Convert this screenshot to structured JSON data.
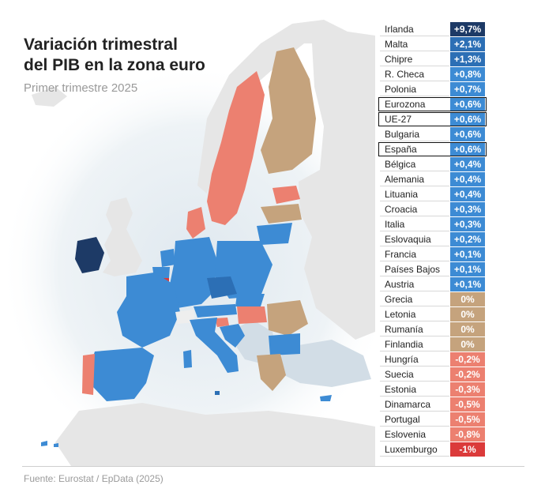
{
  "title_line1": "Variación trimestral",
  "title_line2": "del PIB en la zona euro",
  "subtitle": "Primer trimestre 2025",
  "source": "Fuente: Eurostat / EpData (2025)",
  "colors": {
    "very_high": "#1d3a66",
    "high": "#2c6fb5",
    "positive": "#3d8bd4",
    "zero": "#c5a37d",
    "negative": "#ec8070",
    "very_negative": "#db3a3a",
    "non_member": "#c9d7e3",
    "outside": "#ececec",
    "sea": "#ffffff"
  },
  "chart_data": {
    "type": "table",
    "rows": [
      {
        "country": "Irlanda",
        "value": 9.7,
        "label": "+9,7%",
        "highlight": false
      },
      {
        "country": "Malta",
        "value": 2.1,
        "label": "+2,1%",
        "highlight": false
      },
      {
        "country": "Chipre",
        "value": 1.3,
        "label": "+1,3%",
        "highlight": false
      },
      {
        "country": "R. Checa",
        "value": 0.8,
        "label": "+0,8%",
        "highlight": false
      },
      {
        "country": "Polonia",
        "value": 0.7,
        "label": "+0,7%",
        "highlight": false
      },
      {
        "country": "Eurozona",
        "value": 0.6,
        "label": "+0,6%",
        "highlight": true
      },
      {
        "country": "UE-27",
        "value": 0.6,
        "label": "+0,6%",
        "highlight": true
      },
      {
        "country": "Bulgaria",
        "value": 0.6,
        "label": "+0,6%",
        "highlight": false
      },
      {
        "country": "España",
        "value": 0.6,
        "label": "+0,6%",
        "highlight": true
      },
      {
        "country": "Bélgica",
        "value": 0.4,
        "label": "+0,4%",
        "highlight": false
      },
      {
        "country": "Alemania",
        "value": 0.4,
        "label": "+0,4%",
        "highlight": false
      },
      {
        "country": "Lituania",
        "value": 0.4,
        "label": "+0,4%",
        "highlight": false
      },
      {
        "country": "Croacia",
        "value": 0.3,
        "label": "+0,3%",
        "highlight": false
      },
      {
        "country": "Italia",
        "value": 0.3,
        "label": "+0,3%",
        "highlight": false
      },
      {
        "country": "Eslovaquia",
        "value": 0.2,
        "label": "+0,2%",
        "highlight": false
      },
      {
        "country": "Francia",
        "value": 0.1,
        "label": "+0,1%",
        "highlight": false
      },
      {
        "country": "Países Bajos",
        "value": 0.1,
        "label": "+0,1%",
        "highlight": false
      },
      {
        "country": "Austria",
        "value": 0.1,
        "label": "+0,1%",
        "highlight": false
      },
      {
        "country": "Grecia",
        "value": 0,
        "label": "0%",
        "highlight": false
      },
      {
        "country": "Letonia",
        "value": 0,
        "label": "0%",
        "highlight": false
      },
      {
        "country": "Rumanía",
        "value": 0,
        "label": "0%",
        "highlight": false
      },
      {
        "country": "Finlandia",
        "value": 0,
        "label": "0%",
        "highlight": false
      },
      {
        "country": "Hungría",
        "value": -0.2,
        "label": "-0,2%",
        "highlight": false
      },
      {
        "country": "Suecia",
        "value": -0.2,
        "label": "-0,2%",
        "highlight": false
      },
      {
        "country": "Estonia",
        "value": -0.3,
        "label": "-0,3%",
        "highlight": false
      },
      {
        "country": "Dinamarca",
        "value": -0.5,
        "label": "-0,5%",
        "highlight": false
      },
      {
        "country": "Portugal",
        "value": -0.5,
        "label": "-0,5%",
        "highlight": false
      },
      {
        "country": "Eslovenia",
        "value": -0.8,
        "label": "-0,8%",
        "highlight": false
      },
      {
        "country": "Luxemburgo",
        "value": -1,
        "label": "-1%",
        "highlight": false
      }
    ]
  }
}
